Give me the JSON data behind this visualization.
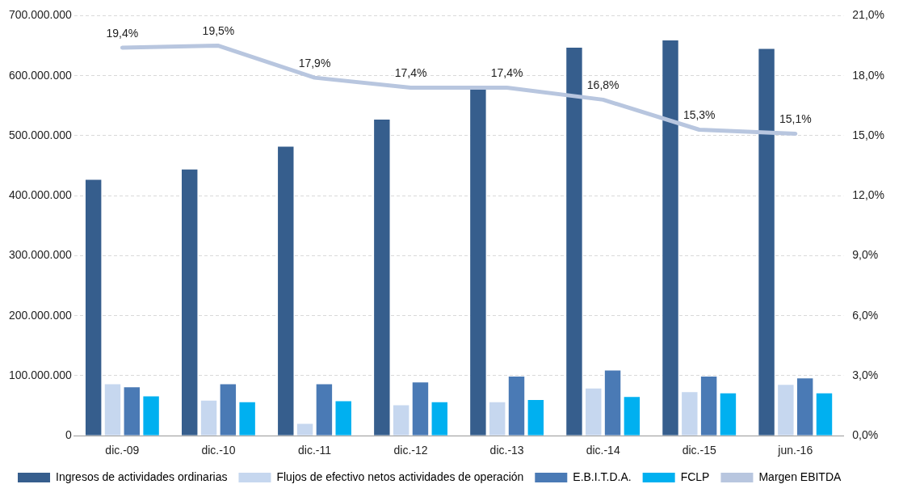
{
  "chart_data": {
    "type": "bar",
    "categories": [
      "dic.-09",
      "dic.-10",
      "dic.-11",
      "dic.-12",
      "dic.-13",
      "dic.-14",
      "dic.-15",
      "jun.-16"
    ],
    "series": [
      {
        "name": "Ingresos de actividades ordinarias",
        "color": "#365e8d",
        "values": [
          428000000,
          445000000,
          483000000,
          528000000,
          578000000,
          648000000,
          660000000,
          646000000
        ]
      },
      {
        "name": "Flujos de efectivo netos actividades de operación",
        "color": "#c6d7ef",
        "values": [
          87000000,
          60000000,
          21000000,
          52000000,
          57000000,
          80000000,
          74000000,
          86000000
        ]
      },
      {
        "name": "E.B.I.T.D.A.",
        "color": "#4a7ab5",
        "values": [
          82000000,
          87000000,
          87000000,
          90000000,
          100000000,
          110000000,
          100000000,
          97000000
        ]
      },
      {
        "name": "FCLP",
        "color": "#00b0f0",
        "values": [
          67000000,
          57000000,
          59000000,
          57000000,
          61000000,
          66000000,
          72000000,
          72000000
        ]
      },
      {
        "name": "Margen EBITDA",
        "type": "line",
        "axis": "y2",
        "color": "#b8c6df",
        "values": [
          19.4,
          19.5,
          17.9,
          17.4,
          17.4,
          16.8,
          15.3,
          15.1
        ],
        "value_labels": [
          "19,4%",
          "19,5%",
          "17,9%",
          "17,4%",
          "17,4%",
          "16,8%",
          "15,3%",
          "15,1%"
        ]
      }
    ],
    "ylim": [
      0,
      700000000
    ],
    "yticks": [
      {
        "value": 0,
        "label": "0"
      },
      {
        "value": 100000000,
        "label": "100.000.000"
      },
      {
        "value": 200000000,
        "label": "200.000.000"
      },
      {
        "value": 300000000,
        "label": "300.000.000"
      },
      {
        "value": 400000000,
        "label": "400.000.000"
      },
      {
        "value": 500000000,
        "label": "500.000.000"
      },
      {
        "value": 600000000,
        "label": "600.000.000"
      },
      {
        "value": 700000000,
        "label": "700.000.000"
      }
    ],
    "y2lim": [
      0,
      21
    ],
    "y2ticks": [
      {
        "value": 0,
        "label": "0,0%"
      },
      {
        "value": 3,
        "label": "3,0%"
      },
      {
        "value": 6,
        "label": "6,0%"
      },
      {
        "value": 9,
        "label": "9,0%"
      },
      {
        "value": 12,
        "label": "12,0%"
      },
      {
        "value": 15,
        "label": "15,0%"
      },
      {
        "value": 18,
        "label": "18,0%"
      },
      {
        "value": 21,
        "label": "21,0%"
      }
    ],
    "grid": "y",
    "legend": "bottom",
    "marker": "none",
    "line_style": "solid"
  }
}
